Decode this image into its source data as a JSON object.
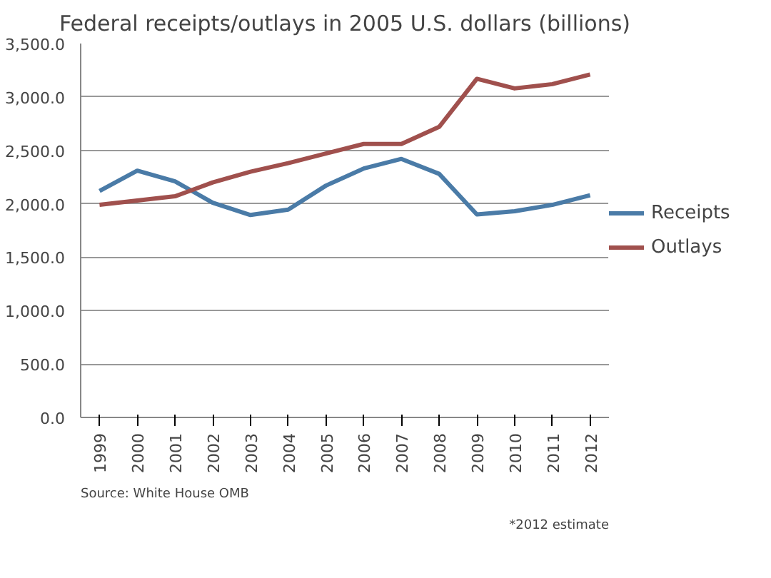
{
  "chart_data": {
    "type": "line",
    "title": "Federal receipts/outlays in 2005 U.S. dollars (billions)",
    "categories": [
      "1999",
      "2000",
      "2001",
      "2002",
      "2003",
      "2004",
      "2005",
      "2006",
      "2007",
      "2008",
      "2009",
      "2010",
      "2011",
      "2012"
    ],
    "series": [
      {
        "name": "Receipts",
        "color": "#4a7ba7",
        "values": [
          2120,
          2310,
          2210,
          2010,
          1895,
          1945,
          2170,
          2330,
          2420,
          2280,
          1900,
          1930,
          1990,
          2080
        ]
      },
      {
        "name": "Outlays",
        "color": "#a0504d",
        "values": [
          1990,
          2030,
          2070,
          2200,
          2300,
          2380,
          2470,
          2560,
          2560,
          2720,
          3170,
          3080,
          3120,
          3210
        ]
      }
    ],
    "ylim": [
      0,
      3500
    ],
    "yticks": [
      {
        "value": 0,
        "label": "0.0"
      },
      {
        "value": 500,
        "label": "500.0"
      },
      {
        "value": 1000,
        "label": "1,000.0"
      },
      {
        "value": 1500,
        "label": "1,500.0"
      },
      {
        "value": 2000,
        "label": "2,000.0"
      },
      {
        "value": 2500,
        "label": "2,500.0"
      },
      {
        "value": 3000,
        "label": "3,000.0"
      },
      {
        "value": 3500,
        "label": "3,500.0"
      }
    ],
    "grid": "y",
    "legend": "right",
    "marker": "none",
    "line_style": "solid",
    "annotations": [
      "Source: White House OMB",
      "*2012 estimate"
    ]
  }
}
